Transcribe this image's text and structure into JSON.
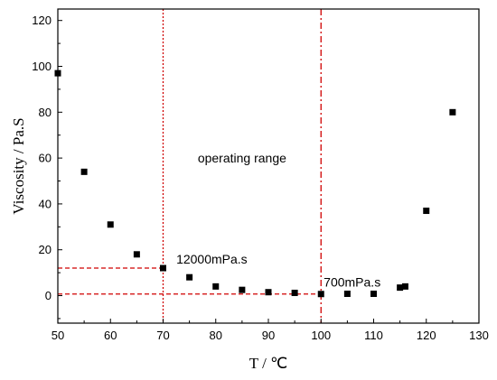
{
  "chart_data": {
    "type": "scatter",
    "title": "",
    "xlabel": "T / ℃",
    "ylabel": "Viscosity  / Pa.S",
    "xlim": [
      50,
      130
    ],
    "ylim": [
      -12,
      125
    ],
    "xticks": [
      50,
      60,
      70,
      80,
      90,
      100,
      110,
      120,
      130
    ],
    "yticks": [
      0,
      20,
      40,
      60,
      80,
      100,
      120
    ],
    "x_tick_labels": [
      "50",
      "60",
      "70",
      "80",
      "90",
      "100",
      "110",
      "120",
      "130"
    ],
    "y_tick_labels": [
      "0",
      "20",
      "40",
      "60",
      "80",
      "100",
      "120"
    ],
    "grid": false,
    "legend": "none",
    "marker": "square",
    "marker_color": "#000000",
    "x": [
      50,
      55,
      60,
      65,
      70,
      75,
      80,
      85,
      90,
      95,
      100,
      105,
      110,
      115,
      116,
      120,
      125
    ],
    "y": [
      97,
      54,
      31,
      18,
      12,
      8,
      4,
      2.5,
      1.5,
      1.2,
      0.7,
      0.8,
      0.8,
      3.5,
      4,
      37,
      80
    ],
    "reference_lines": [
      {
        "orientation": "vertical",
        "x": 70,
        "style": "dotted",
        "color": "#d00000"
      },
      {
        "orientation": "vertical",
        "x": 100,
        "style": "dashdot",
        "color": "#d00000"
      },
      {
        "orientation": "horizontal",
        "y": 12,
        "x_from": 50,
        "x_to": 70,
        "style": "dashed",
        "color": "#d00000"
      },
      {
        "orientation": "horizontal",
        "y": 0.7,
        "x_from": 50,
        "x_to": 100,
        "style": "dashed",
        "color": "#d00000"
      }
    ],
    "annotations": [
      {
        "text": "operating  range",
        "x": 85,
        "y": 58
      },
      {
        "text": "12000mPa.s",
        "x": 72.5,
        "y": 14
      },
      {
        "text": "700mPa.s",
        "x": 100.5,
        "y": 4
      }
    ]
  }
}
